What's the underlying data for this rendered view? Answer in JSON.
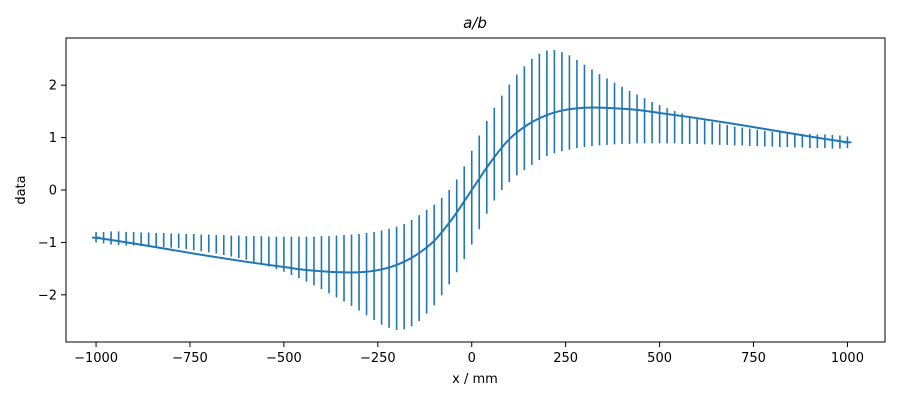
{
  "chart_data": {
    "type": "line",
    "title": "a/b",
    "xlabel": "x / mm",
    "ylabel": "data",
    "xlim": [
      -1080,
      1100
    ],
    "ylim": [
      -2.9,
      2.9
    ],
    "xticks": [
      -1000,
      -750,
      -500,
      -250,
      0,
      250,
      500,
      750,
      1000
    ],
    "xtick_labels": [
      "−1000",
      "−750",
      "−500",
      "−250",
      "0",
      "250",
      "500",
      "750",
      "1000"
    ],
    "yticks": [
      -2,
      -1,
      0,
      1,
      2
    ],
    "ytick_labels": [
      "−2",
      "−1",
      "0",
      "1",
      "2"
    ],
    "grid": false,
    "series": [
      {
        "color": "#1f77b4",
        "x": [
          -1000,
          -900,
          -800,
          -700,
          -600,
          -500,
          -450,
          -400,
          -350,
          -300,
          -250,
          -200,
          -150,
          -100,
          -50,
          0,
          50,
          100,
          150,
          200,
          250,
          300,
          350,
          400,
          450,
          500,
          600,
          700,
          800,
          900,
          1000
        ],
        "y": [
          -0.91,
          -1.02,
          -1.14,
          -1.26,
          -1.37,
          -1.47,
          -1.52,
          -1.55,
          -1.57,
          -1.57,
          -1.53,
          -1.43,
          -1.25,
          -0.97,
          -0.53,
          0.0,
          0.53,
          0.97,
          1.25,
          1.43,
          1.53,
          1.57,
          1.57,
          1.55,
          1.52,
          1.47,
          1.37,
          1.26,
          1.14,
          1.02,
          0.91
        ],
        "error_x": [
          -1000,
          -980,
          -960,
          -940,
          -920,
          -900,
          -880,
          -860,
          -840,
          -820,
          -800,
          -780,
          -760,
          -740,
          -720,
          -700,
          -680,
          -660,
          -640,
          -620,
          -600,
          -580,
          -560,
          -540,
          -520,
          -500,
          -480,
          -460,
          -440,
          -420,
          -400,
          -380,
          -360,
          -340,
          -320,
          -300,
          -280,
          -260,
          -240,
          -220,
          -200,
          -180,
          -160,
          -140,
          -120,
          -100,
          -80,
          -60,
          -40,
          -20,
          0,
          20,
          40,
          60,
          80,
          100,
          120,
          140,
          160,
          180,
          200,
          220,
          240,
          260,
          280,
          300,
          320,
          340,
          360,
          380,
          400,
          420,
          440,
          460,
          480,
          500,
          520,
          540,
          560,
          580,
          600,
          620,
          640,
          660,
          680,
          700,
          720,
          740,
          760,
          780,
          800,
          820,
          840,
          860,
          880,
          900,
          920,
          940,
          960,
          980,
          1000
        ],
        "error_low": [
          -1.0,
          -1.02,
          -1.04,
          -1.05,
          -1.06,
          -1.06,
          -1.07,
          -1.07,
          -1.08,
          -1.09,
          -1.1,
          -1.11,
          -1.13,
          -1.15,
          -1.17,
          -1.19,
          -1.21,
          -1.24,
          -1.27,
          -1.3,
          -1.33,
          -1.37,
          -1.41,
          -1.46,
          -1.51,
          -1.56,
          -1.62,
          -1.68,
          -1.75,
          -1.82,
          -1.89,
          -1.97,
          -2.05,
          -2.13,
          -2.21,
          -2.3,
          -2.39,
          -2.48,
          -2.57,
          -2.63,
          -2.67,
          -2.66,
          -2.6,
          -2.5,
          -2.36,
          -2.2,
          -2.01,
          -1.8,
          -1.57,
          -1.32,
          -1.04,
          -0.75,
          -0.45,
          -0.2,
          0.0,
          0.15,
          0.28,
          0.38,
          0.48,
          0.57,
          0.65,
          0.7,
          0.74,
          0.77,
          0.8,
          0.82,
          0.84,
          0.85,
          0.86,
          0.87,
          0.88,
          0.88,
          0.89,
          0.89,
          0.89,
          0.89,
          0.89,
          0.89,
          0.88,
          0.88,
          0.88,
          0.87,
          0.87,
          0.86,
          0.86,
          0.85,
          0.85,
          0.84,
          0.84,
          0.83,
          0.83,
          0.82,
          0.82,
          0.81,
          0.81,
          0.8,
          0.8,
          0.8,
          0.79,
          0.79,
          0.8
        ],
        "error_high": [
          -0.8,
          -0.8,
          -0.79,
          -0.79,
          -0.8,
          -0.8,
          -0.81,
          -0.81,
          -0.82,
          -0.82,
          -0.83,
          -0.83,
          -0.84,
          -0.84,
          -0.85,
          -0.85,
          -0.86,
          -0.86,
          -0.87,
          -0.87,
          -0.88,
          -0.88,
          -0.88,
          -0.89,
          -0.89,
          -0.89,
          -0.89,
          -0.89,
          -0.89,
          -0.89,
          -0.88,
          -0.88,
          -0.87,
          -0.86,
          -0.85,
          -0.84,
          -0.82,
          -0.8,
          -0.77,
          -0.74,
          -0.7,
          -0.65,
          -0.57,
          -0.48,
          -0.38,
          -0.28,
          -0.15,
          0.0,
          0.2,
          0.45,
          0.75,
          1.04,
          1.32,
          1.57,
          1.8,
          2.01,
          2.2,
          2.36,
          2.5,
          2.6,
          2.66,
          2.67,
          2.63,
          2.57,
          2.48,
          2.39,
          2.3,
          2.21,
          2.13,
          2.05,
          1.97,
          1.89,
          1.82,
          1.75,
          1.68,
          1.62,
          1.56,
          1.51,
          1.46,
          1.41,
          1.37,
          1.33,
          1.3,
          1.27,
          1.24,
          1.21,
          1.19,
          1.17,
          1.15,
          1.13,
          1.11,
          1.1,
          1.09,
          1.08,
          1.07,
          1.07,
          1.06,
          1.06,
          1.05,
          1.04,
          1.02
        ]
      }
    ]
  }
}
